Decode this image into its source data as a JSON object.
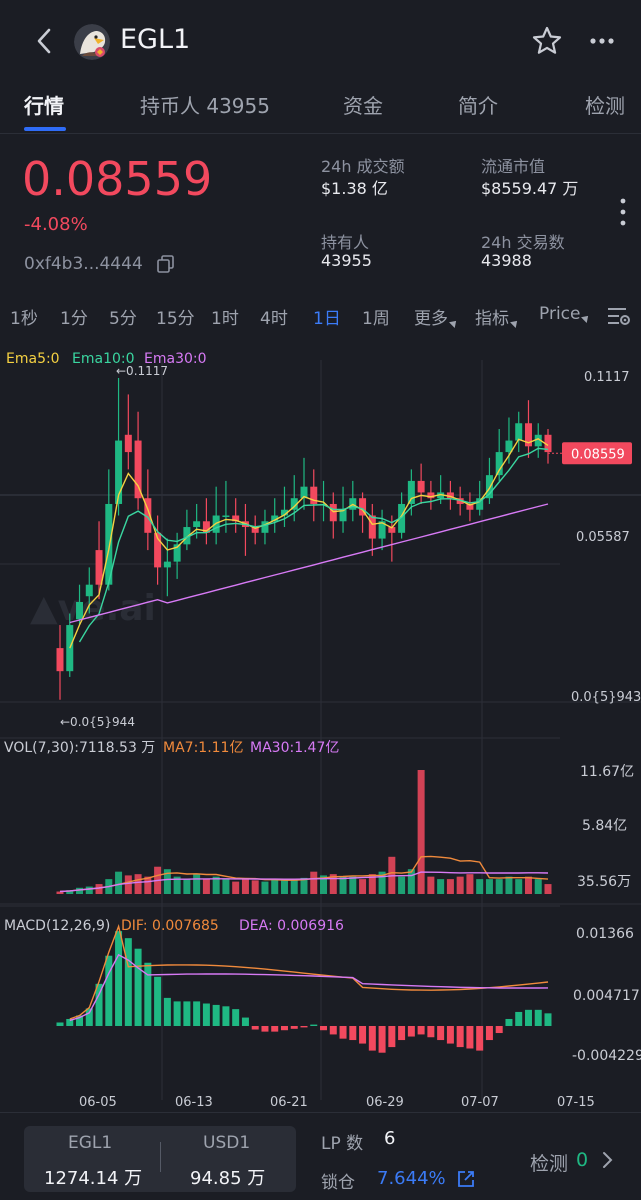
{
  "header": {
    "title": "EGL1"
  },
  "tabs": [
    {
      "label": "行情"
    },
    {
      "label": "持币人 43955"
    },
    {
      "label": "资金"
    },
    {
      "label": "简介"
    },
    {
      "label": "检测"
    }
  ],
  "token": {
    "price": "0.08559",
    "change": "-4.08%",
    "address": "0xf4b3...4444"
  },
  "stats": {
    "vol24h_label": "24h 成交额",
    "vol24h_value": "$1.38 亿",
    "mcap_label": "流通市值",
    "mcap_value": "$8559.47 万",
    "holders_label": "持有人",
    "holders_value": "43955",
    "tx24h_label": "24h 交易数",
    "tx24h_value": "43988"
  },
  "timeframes": [
    "1秒",
    "1分",
    "5分",
    "15分",
    "1时",
    "4时",
    "1日",
    "1周"
  ],
  "toolbar": {
    "more_label": "更多",
    "indicators_label": "指标",
    "price_label": "Price"
  },
  "colors": {
    "up": "#1fb883",
    "down": "#f2495e",
    "ema5": "#f5d142",
    "ema10": "#3ad6a0",
    "ema30": "#d77af5",
    "accent": "#3b7bf6"
  },
  "chart_data": {
    "type": "candlestick",
    "main_legend": {
      "ema5": "Ema5:0",
      "ema10": "Ema10:0",
      "ema30": "Ema30:0"
    },
    "price_axis": [
      "0.1117",
      "0.05587",
      "0.0{5}943"
    ],
    "last_price_tag": "0.08559",
    "high_annotation": "←0.1117",
    "low_annotation": "←0.0{5}944",
    "x_ticks": [
      "06-05",
      "06-13",
      "06-21",
      "06-29",
      "07-07",
      "07-15"
    ],
    "vol_legend": {
      "vol": "VOL(7,30):7118.53 万",
      "ma7": "MA7:1.11亿",
      "ma30": "MA30:1.47亿"
    },
    "vol_axis": [
      "11.67亿",
      "5.84亿",
      "35.56万"
    ],
    "macd_legend": {
      "macd": "MACD(12,26,9)",
      "dif": "DIF:  0.007685",
      "dea": "DEA:  0.006916"
    },
    "macd_axis": [
      "0.01366",
      "0.004717",
      "-0.004229"
    ],
    "candles": [
      [
        0.018,
        0.01,
        0.026,
        9.43e-05
      ],
      [
        0.01,
        0.026,
        0.03,
        0.008
      ],
      [
        0.028,
        0.034,
        0.04,
        0.026
      ],
      [
        0.036,
        0.04,
        0.046,
        0.03
      ],
      [
        0.052,
        0.04,
        0.062,
        0.035
      ],
      [
        0.04,
        0.068,
        0.08,
        0.038
      ],
      [
        0.068,
        0.09,
        0.1117,
        0.064
      ],
      [
        0.092,
        0.086,
        0.106,
        0.08
      ],
      [
        0.09,
        0.07,
        0.1,
        0.066
      ],
      [
        0.07,
        0.058,
        0.08,
        0.052
      ],
      [
        0.058,
        0.046,
        0.064,
        0.04
      ],
      [
        0.046,
        0.048,
        0.056,
        0.036
      ],
      [
        0.048,
        0.054,
        0.058,
        0.042
      ],
      [
        0.054,
        0.06,
        0.066,
        0.052
      ],
      [
        0.06,
        0.062,
        0.068,
        0.056
      ],
      [
        0.062,
        0.058,
        0.07,
        0.054
      ],
      [
        0.058,
        0.064,
        0.074,
        0.054
      ],
      [
        0.064,
        0.064,
        0.076,
        0.058
      ],
      [
        0.064,
        0.062,
        0.07,
        0.058
      ],
      [
        0.062,
        0.06,
        0.068,
        0.05
      ],
      [
        0.06,
        0.058,
        0.064,
        0.054
      ],
      [
        0.058,
        0.062,
        0.066,
        0.054
      ],
      [
        0.062,
        0.064,
        0.07,
        0.058
      ],
      [
        0.064,
        0.066,
        0.074,
        0.06
      ],
      [
        0.066,
        0.07,
        0.078,
        0.062
      ],
      [
        0.07,
        0.074,
        0.084,
        0.066
      ],
      [
        0.074,
        0.068,
        0.08,
        0.062
      ],
      [
        0.068,
        0.068,
        0.076,
        0.062
      ],
      [
        0.068,
        0.062,
        0.072,
        0.056
      ],
      [
        0.062,
        0.066,
        0.074,
        0.058
      ],
      [
        0.066,
        0.07,
        0.076,
        0.062
      ],
      [
        0.07,
        0.064,
        0.072,
        0.058
      ],
      [
        0.064,
        0.056,
        0.068,
        0.05
      ],
      [
        0.056,
        0.062,
        0.066,
        0.052
      ],
      [
        0.06,
        0.058,
        0.064,
        0.048
      ],
      [
        0.058,
        0.068,
        0.072,
        0.056
      ],
      [
        0.068,
        0.076,
        0.08,
        0.064
      ],
      [
        0.076,
        0.072,
        0.082,
        0.068
      ],
      [
        0.072,
        0.07,
        0.076,
        0.066
      ],
      [
        0.07,
        0.072,
        0.078,
        0.068
      ],
      [
        0.072,
        0.07,
        0.076,
        0.066
      ],
      [
        0.07,
        0.068,
        0.074,
        0.064
      ],
      [
        0.068,
        0.066,
        0.072,
        0.062
      ],
      [
        0.066,
        0.07,
        0.076,
        0.064
      ],
      [
        0.07,
        0.078,
        0.084,
        0.068
      ],
      [
        0.078,
        0.086,
        0.094,
        0.076
      ],
      [
        0.086,
        0.09,
        0.098,
        0.082
      ],
      [
        0.09,
        0.096,
        0.1,
        0.086
      ],
      [
        0.096,
        0.088,
        0.104,
        0.084
      ],
      [
        0.088,
        0.092,
        0.096,
        0.084
      ],
      [
        0.092,
        0.086,
        0.094,
        0.082
      ]
    ],
    "volume": [
      0.02,
      0.03,
      0.05,
      0.06,
      0.08,
      0.12,
      0.18,
      0.15,
      0.16,
      0.14,
      0.22,
      0.2,
      0.14,
      0.12,
      0.16,
      0.12,
      0.14,
      0.12,
      0.1,
      0.12,
      0.11,
      0.1,
      0.12,
      0.11,
      0.12,
      0.13,
      0.18,
      0.15,
      0.16,
      0.14,
      0.14,
      0.12,
      0.16,
      0.18,
      0.3,
      0.14,
      0.2,
      1.0,
      0.14,
      0.12,
      0.12,
      0.14,
      0.16,
      0.12,
      0.12,
      0.12,
      0.14,
      0.12,
      0.14,
      0.12,
      0.08
    ],
    "macd_hist": [
      0.0005,
      0.001,
      0.0015,
      0.0025,
      0.006,
      0.01,
      0.0135,
      0.0125,
      0.011,
      0.009,
      0.007,
      0.004,
      0.0035,
      0.0035,
      0.0035,
      0.0032,
      0.003,
      0.0028,
      0.0024,
      0.0012,
      -0.0005,
      -0.0008,
      -0.0008,
      -0.0006,
      -0.0004,
      -0.0002,
      0.0002,
      -0.0006,
      -0.0012,
      -0.0018,
      -0.002,
      -0.0025,
      -0.0035,
      -0.0038,
      -0.003,
      -0.002,
      -0.0015,
      -0.0012,
      -0.0016,
      -0.002,
      -0.0025,
      -0.003,
      -0.0032,
      -0.0035,
      -0.002,
      -0.001,
      0.001,
      0.002,
      0.0023,
      0.0023,
      0.0018
    ]
  },
  "bottom": {
    "base_symbol": "EGL1",
    "base_amount": "1274.14 万",
    "quote_symbol": "USD1",
    "quote_amount": "94.85 万",
    "lp_label": "LP 数",
    "lp_value": "6",
    "lock_label": "锁仓",
    "lock_value": "7.644%",
    "check_label": "检测",
    "check_value": "0"
  }
}
